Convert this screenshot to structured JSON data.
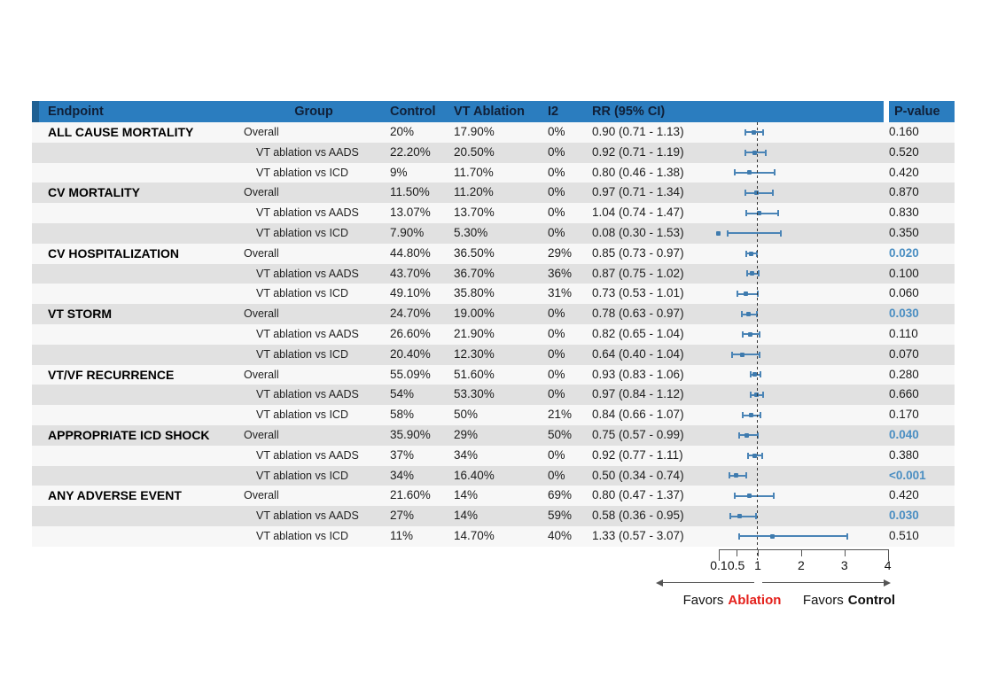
{
  "figure": {
    "favors": {
      "left_prefix": "Favors",
      "left_term": "Ablation",
      "right_prefix": "Favors",
      "right_term": "Control"
    }
  },
  "colors": {
    "header_bg": "#2b7dbf",
    "header_accent": "#1f6093",
    "header_text": "#102038",
    "row_light": "#f7f7f7",
    "row_dark": "#e1e1e1",
    "marker_blue": "#4a84b6",
    "significant_p_blue": "#4a8ec2",
    "favors_red": "#e4211c"
  },
  "chart_data": {
    "type": "scatter",
    "subtype": "forest_plot_with_table",
    "title": "",
    "columns": [
      "Endpoint",
      "Group",
      "Control",
      "VT Ablation",
      "I2",
      "RR (95% CI)",
      "P-value"
    ],
    "x_axis": {
      "scale": "linear",
      "ticks": [
        0.1,
        0.5,
        1,
        2,
        3,
        4
      ],
      "tick_labels": [
        "0.1",
        "0.5",
        "1",
        "2",
        "3",
        "4"
      ],
      "range": [
        0.1,
        4
      ],
      "reference_line": 1
    },
    "favors_left": "Favors Ablation",
    "favors_right": "Favors Control",
    "rows": [
      {
        "endpoint": "ALL CAUSE MORTALITY",
        "group": "Overall",
        "control": "20%",
        "vt_ablation": "17.90%",
        "i2": "0%",
        "rr_text": "0.90 (0.71 - 1.13)",
        "rr": 0.9,
        "ci_low": 0.71,
        "ci_high": 1.13,
        "p_value": "0.160",
        "significant": false
      },
      {
        "endpoint": "",
        "group": "VT ablation vs AADS",
        "control": "22.20%",
        "vt_ablation": "20.50%",
        "i2": "0%",
        "rr_text": "0.92 (0.71 - 1.19)",
        "rr": 0.92,
        "ci_low": 0.71,
        "ci_high": 1.19,
        "p_value": "0.520",
        "significant": false
      },
      {
        "endpoint": "",
        "group": "VT ablation vs ICD",
        "control": "9%",
        "vt_ablation": "11.70%",
        "i2": "0%",
        "rr_text": "0.80 (0.46 - 1.38)",
        "rr": 0.8,
        "ci_low": 0.46,
        "ci_high": 1.38,
        "p_value": "0.420",
        "significant": false
      },
      {
        "endpoint": "CV MORTALITY",
        "group": "Overall",
        "control": "11.50%",
        "vt_ablation": "11.20%",
        "i2": "0%",
        "rr_text": "0.97 (0.71 - 1.34)",
        "rr": 0.97,
        "ci_low": 0.71,
        "ci_high": 1.34,
        "p_value": "0.870",
        "significant": false
      },
      {
        "endpoint": "",
        "group": "VT ablation vs AADS",
        "control": "13.07%",
        "vt_ablation": "13.70%",
        "i2": "0%",
        "rr_text": "1.04 (0.74 - 1.47)",
        "rr": 1.04,
        "ci_low": 0.74,
        "ci_high": 1.47,
        "p_value": "0.830",
        "significant": false
      },
      {
        "endpoint": "",
        "group": "VT ablation vs ICD",
        "control": "7.90%",
        "vt_ablation": "5.30%",
        "i2": "0%",
        "rr_text": "0.08 (0.30 - 1.53)",
        "rr": 0.08,
        "ci_low": 0.3,
        "ci_high": 1.53,
        "p_value": "0.350",
        "significant": false
      },
      {
        "endpoint": "CV HOSPITALIZATION",
        "group": "Overall",
        "control": "44.80%",
        "vt_ablation": "36.50%",
        "i2": "29%",
        "rr_text": "0.85 (0.73 - 0.97)",
        "rr": 0.85,
        "ci_low": 0.73,
        "ci_high": 0.97,
        "p_value": "0.020",
        "significant": true
      },
      {
        "endpoint": "",
        "group": "VT ablation vs AADS",
        "control": "43.70%",
        "vt_ablation": "36.70%",
        "i2": "36%",
        "rr_text": "0.87 (0.75 - 1.02)",
        "rr": 0.87,
        "ci_low": 0.75,
        "ci_high": 1.02,
        "p_value": "0.100",
        "significant": false
      },
      {
        "endpoint": "",
        "group": "VT ablation vs ICD",
        "control": "49.10%",
        "vt_ablation": "35.80%",
        "i2": "31%",
        "rr_text": "0.73 (0.53 - 1.01)",
        "rr": 0.73,
        "ci_low": 0.53,
        "ci_high": 1.01,
        "p_value": "0.060",
        "significant": false
      },
      {
        "endpoint": "VT STORM",
        "group": "Overall",
        "control": "24.70%",
        "vt_ablation": "19.00%",
        "i2": "0%",
        "rr_text": "0.78 (0.63 - 0.97)",
        "rr": 0.78,
        "ci_low": 0.63,
        "ci_high": 0.97,
        "p_value": "0.030",
        "significant": true
      },
      {
        "endpoint": "",
        "group": "VT ablation vs AADS",
        "control": "26.60%",
        "vt_ablation": "21.90%",
        "i2": "0%",
        "rr_text": "0.82 (0.65 - 1.04)",
        "rr": 0.82,
        "ci_low": 0.65,
        "ci_high": 1.04,
        "p_value": "0.110",
        "significant": false
      },
      {
        "endpoint": "",
        "group": "VT ablation vs ICD",
        "control": "20.40%",
        "vt_ablation": "12.30%",
        "i2": "0%",
        "rr_text": "0.64 (0.40 - 1.04)",
        "rr": 0.64,
        "ci_low": 0.4,
        "ci_high": 1.04,
        "p_value": "0.070",
        "significant": false
      },
      {
        "endpoint": "VT/VF RECURRENCE",
        "group": "Overall",
        "control": "55.09%",
        "vt_ablation": "51.60%",
        "i2": "0%",
        "rr_text": "0.93 (0.83 - 1.06)",
        "rr": 0.93,
        "ci_low": 0.83,
        "ci_high": 1.06,
        "p_value": "0.280",
        "significant": false
      },
      {
        "endpoint": "",
        "group": "VT ablation vs AADS",
        "control": "54%",
        "vt_ablation": "53.30%",
        "i2": "0%",
        "rr_text": "0.97 (0.84 - 1.12)",
        "rr": 0.97,
        "ci_low": 0.84,
        "ci_high": 1.12,
        "p_value": "0.660",
        "significant": false
      },
      {
        "endpoint": "",
        "group": "VT ablation vs ICD",
        "control": "58%",
        "vt_ablation": "50%",
        "i2": "21%",
        "rr_text": "0.84 (0.66 - 1.07)",
        "rr": 0.84,
        "ci_low": 0.66,
        "ci_high": 1.07,
        "p_value": "0.170",
        "significant": false
      },
      {
        "endpoint": "APPROPRIATE ICD SHOCK",
        "group": "Overall",
        "control": "35.90%",
        "vt_ablation": "29%",
        "i2": "50%",
        "rr_text": "0.75 (0.57 - 0.99)",
        "rr": 0.75,
        "ci_low": 0.57,
        "ci_high": 0.99,
        "p_value": "0.040",
        "significant": true
      },
      {
        "endpoint": "",
        "group": "VT ablation vs AADS",
        "control": "37%",
        "vt_ablation": "34%",
        "i2": "0%",
        "rr_text": "0.92 (0.77 - 1.11)",
        "rr": 0.92,
        "ci_low": 0.77,
        "ci_high": 1.11,
        "p_value": "0.380",
        "significant": false
      },
      {
        "endpoint": "",
        "group": "VT ablation vs ICD",
        "control": "34%",
        "vt_ablation": "16.40%",
        "i2": "0%",
        "rr_text": "0.50 (0.34 - 0.74)",
        "rr": 0.5,
        "ci_low": 0.34,
        "ci_high": 0.74,
        "p_value": "<0.001",
        "significant": true
      },
      {
        "endpoint": "ANY ADVERSE EVENT",
        "group": "Overall",
        "control": "21.60%",
        "vt_ablation": "14%",
        "i2": "69%",
        "rr_text": "0.80 (0.47 - 1.37)",
        "rr": 0.8,
        "ci_low": 0.47,
        "ci_high": 1.37,
        "p_value": "0.420",
        "significant": false
      },
      {
        "endpoint": "",
        "group": "VT ablation vs AADS",
        "control": "27%",
        "vt_ablation": "14%",
        "i2": "59%",
        "rr_text": "0.58 (0.36 - 0.95)",
        "rr": 0.58,
        "ci_low": 0.36,
        "ci_high": 0.95,
        "p_value": "0.030",
        "significant": true
      },
      {
        "endpoint": "",
        "group": "VT ablation vs ICD",
        "control": "11%",
        "vt_ablation": "14.70%",
        "i2": "40%",
        "rr_text": "1.33 (0.57 - 3.07)",
        "rr": 1.33,
        "ci_low": 0.57,
        "ci_high": 3.07,
        "p_value": "0.510",
        "significant": false
      }
    ]
  }
}
